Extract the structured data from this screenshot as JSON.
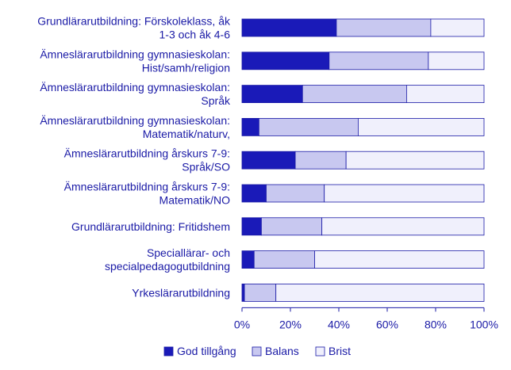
{
  "chart_data": {
    "type": "bar",
    "orientation": "horizontal",
    "stacked": true,
    "categories": [
      [
        "Grundlärarutbildning: Förskoleklass, åk",
        "1-3 och åk 4-6"
      ],
      [
        "Ämneslärarutbildning gymnasieskolan:",
        "Hist/samh/religion"
      ],
      [
        "Ämneslärarutbildning gymnasieskolan:",
        "Språk"
      ],
      [
        "Ämneslärarutbildning gymnasieskolan:",
        "Matematik/naturv,"
      ],
      [
        "Ämneslärarutbildning årskurs 7-9:",
        "Språk/SO"
      ],
      [
        "Ämneslärarutbildning årskurs 7-9:",
        "Matematik/NO"
      ],
      [
        "Grundlärarutbildning: Fritidshem"
      ],
      [
        "Speciallärar- och",
        "specialpedagogutbildning"
      ],
      [
        "Yrkeslärarutbildning"
      ]
    ],
    "series": [
      {
        "name": "God tillgång",
        "color": "#1a1ab8",
        "values": [
          39,
          36,
          25,
          7,
          22,
          10,
          8,
          5,
          1
        ]
      },
      {
        "name": "Balans",
        "color": "#c8c8f0",
        "values": [
          39,
          41,
          43,
          41,
          21,
          24,
          25,
          25,
          13
        ]
      },
      {
        "name": "Brist",
        "color": "#f0f0fc",
        "values": [
          22,
          23,
          32,
          52,
          57,
          66,
          67,
          70,
          86
        ]
      }
    ],
    "xlim": [
      0,
      100
    ],
    "xticks": [
      "0%",
      "20%",
      "40%",
      "60%",
      "80%",
      "100%"
    ],
    "legend_position": "bottom",
    "grid": false
  },
  "colors": {
    "text": "#1a1aa6",
    "bar_border": "#1a1aa6",
    "axis": "#1a1aa6"
  }
}
